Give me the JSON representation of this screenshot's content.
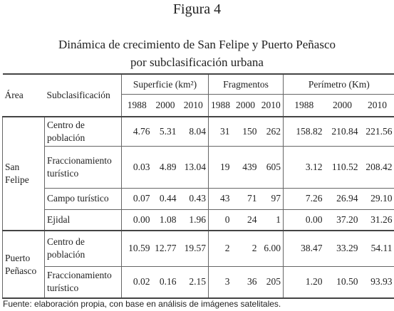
{
  "figure_label": "Figura 4",
  "title": [
    "Dinámica de crecimiento de San Felipe y Puerto Peñasco",
    "por subclasificación urbana"
  ],
  "table": {
    "header": {
      "area": "Área",
      "subclass": "Subclasificación",
      "groups": [
        "Superficie (km²)",
        "Fragmentos",
        "Perímetro (Km)"
      ],
      "years": [
        "1988",
        "2000",
        "2010",
        "1988",
        "2000",
        "2010",
        "1988",
        "2000",
        "2010"
      ]
    },
    "groups": [
      {
        "area": "San Felipe",
        "rows": [
          {
            "label": "Centro de población",
            "values": [
              "4.76",
              "5.31",
              "8.04",
              "31",
              "150",
              "262",
              "158.82",
              "210.84",
              "221.56"
            ]
          },
          {
            "label": "Fraccionamiento turístico",
            "values": [
              "0.03",
              "4.89",
              "13.04",
              "19",
              "439",
              "605",
              "3.12",
              "110.52",
              "208.42"
            ]
          },
          {
            "label": "Campo turístico",
            "values": [
              "0.07",
              "0.44",
              "0.43",
              "43",
              "71",
              "97",
              "7.26",
              "26.94",
              "29.10"
            ]
          },
          {
            "label": "Ejidal",
            "values": [
              "0.00",
              "1.08",
              "1.96",
              "0",
              "24",
              "1",
              "0.00",
              "37.20",
              "31.26"
            ]
          }
        ]
      },
      {
        "area": "Puerto Peñasco",
        "rows": [
          {
            "label": "Centro de población",
            "values": [
              "10.59",
              "12.77",
              "19.57",
              "2",
              "2",
              "6.00",
              "38.47",
              "33.29",
              "54.11"
            ]
          },
          {
            "label": "Fraccionamiento turístico",
            "values": [
              "0.02",
              "0.16",
              "2.15",
              "3",
              "36",
              "205",
              "1.20",
              "10.50",
              "93.93"
            ]
          }
        ]
      }
    ]
  },
  "source": "Fuente: elaboración propia, con base en análisis de imágenes satelitales."
}
